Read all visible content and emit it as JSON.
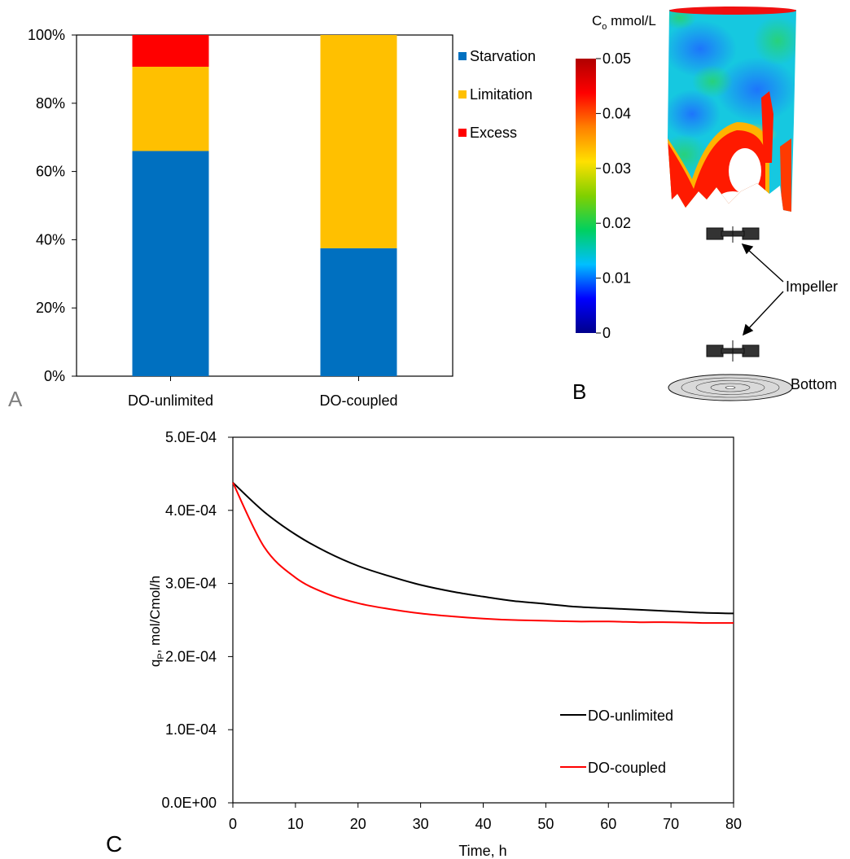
{
  "panels": {
    "a": "A",
    "b": "B",
    "c": "C"
  },
  "chart_data": [
    {
      "type": "bar",
      "stacked": true,
      "categories": [
        "DO-unlimited",
        "DO-coupled"
      ],
      "series": [
        {
          "name": "Starvation",
          "values": [
            66,
            37.5
          ],
          "color": "#0070c0"
        },
        {
          "name": "Limitation",
          "values": [
            24.7,
            62.5
          ],
          "color": "#ffc000"
        },
        {
          "name": "Excess",
          "values": [
            9.3,
            0
          ],
          "color": "#ff0000"
        }
      ],
      "ylim": [
        0,
        100
      ],
      "yticks": [
        0,
        20,
        40,
        60,
        80,
        100
      ],
      "ytick_suffix": "%",
      "legend_position": "top-right",
      "grid": false
    },
    {
      "type": "heatmap",
      "colorbar": {
        "title_main": "C",
        "title_sub": "o",
        "title_unit": " mmol/L",
        "ticks": [
          "0",
          "0.01",
          "0.02",
          "0.03",
          "0.04",
          "0.05"
        ],
        "range": [
          0,
          0.05
        ],
        "colors": [
          "#00008b",
          "#0000ff",
          "#00bfff",
          "#00d060",
          "#80d000",
          "#ffe000",
          "#ff8000",
          "#ff0000",
          "#b00000"
        ]
      },
      "annotations": {
        "impeller": "Impeller",
        "bottom": "Bottom"
      }
    },
    {
      "type": "line",
      "xlabel": "Time, h",
      "ylabel_main": "q",
      "ylabel_sub": "P",
      "ylabel_rest": ", mol/Cmol/h",
      "xlim": [
        0,
        80
      ],
      "ylim": [
        0,
        0.0005
      ],
      "xticks": [
        "0",
        "10",
        "20",
        "30",
        "40",
        "50",
        "60",
        "70",
        "80"
      ],
      "yticks": [
        "0.0E+00",
        "1.0E-04",
        "2.0E-04",
        "3.0E-04",
        "4.0E-04",
        "5.0E-04"
      ],
      "grid": false,
      "legend_position": "bottom-right",
      "series": [
        {
          "name": "DO-unlimited",
          "color": "#000000",
          "x": [
            0,
            5,
            10,
            15,
            20,
            25,
            30,
            35,
            40,
            45,
            50,
            55,
            60,
            65,
            70,
            75,
            80
          ],
          "y": [
            0.000438,
            0.000398,
            0.000367,
            0.000343,
            0.000324,
            0.00031,
            0.000298,
            0.000289,
            0.000282,
            0.000276,
            0.000272,
            0.000268,
            0.000266,
            0.000264,
            0.000262,
            0.00026,
            0.000259
          ]
        },
        {
          "name": "DO-coupled",
          "color": "#ff0000",
          "x": [
            0,
            5,
            10,
            15,
            20,
            25,
            30,
            35,
            40,
            45,
            50,
            55,
            60,
            65,
            70,
            75,
            80
          ],
          "y": [
            0.000438,
            0.00035,
            0.000308,
            0.000286,
            0.000273,
            0.000265,
            0.000259,
            0.000255,
            0.000252,
            0.00025,
            0.000249,
            0.000248,
            0.000248,
            0.000247,
            0.000247,
            0.000246,
            0.000246
          ]
        }
      ]
    }
  ]
}
